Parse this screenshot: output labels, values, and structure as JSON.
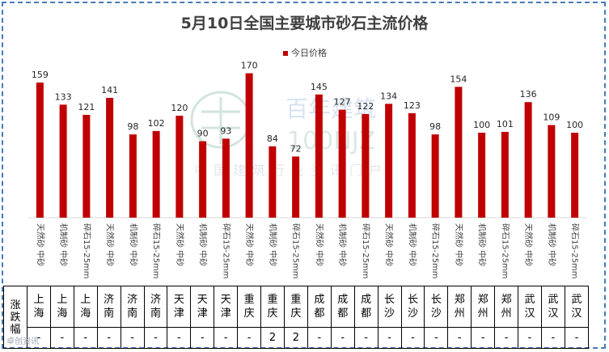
{
  "chart_data": {
    "type": "bar",
    "title": "5月10日全国主要城市砂石主流价格",
    "legend": [
      "今日价格"
    ],
    "legend_position": "top-center",
    "series": [
      {
        "name": "今日价格",
        "values": [
          159,
          133,
          121,
          141,
          98,
          102,
          120,
          90,
          93,
          170,
          84,
          72,
          145,
          127,
          122,
          134,
          123,
          98,
          154,
          100,
          101,
          136,
          109,
          100
        ]
      }
    ],
    "categories": [
      "天然砂 中砂",
      "机制砂 中砂",
      "碎石15-25mm",
      "天然砂 中砂",
      "机制砂 中砂",
      "碎石15-25mm",
      "天然砂 中砂",
      "机制砂 中砂",
      "碎石15-25mm",
      "天然砂 中砂",
      "机制砂 中砂",
      "碎石15-25mm",
      "天然砂 中砂",
      "机制砂 中砂",
      "碎石15-25mm",
      "天然砂 中砂",
      "机制砂 中砂",
      "碎石15-25mm",
      "天然砂 中砂",
      "机制砂 中砂",
      "碎石15-25mm",
      "天然砂 中砂",
      "机制砂 中砂",
      "碎石15-25mm"
    ],
    "ylim": [
      0,
      180
    ],
    "grid": false,
    "colors": {
      "bar": "#c00000"
    }
  },
  "table": {
    "row_label": "涨跌幅",
    "cities": [
      "上海",
      "上海",
      "上海",
      "济南",
      "济南",
      "济南",
      "天津",
      "天津",
      "天津",
      "重庆",
      "重庆",
      "重庆",
      "成都",
      "成都",
      "成都",
      "长沙",
      "长沙",
      "长沙",
      "郑州",
      "郑州",
      "郑州",
      "武汉",
      "武汉",
      "武汉"
    ],
    "changes": [
      "-",
      "-",
      "-",
      "-",
      "-",
      "-",
      "-",
      "-",
      "-",
      "-",
      "2",
      "2",
      "-",
      "-",
      "-",
      "-",
      "-",
      "-",
      "-",
      "-",
      "-",
      "-",
      "-",
      "-"
    ]
  },
  "watermark": {
    "brand": "百年建筑",
    "code": "100NJZ",
    "tagline": "中国建筑行业资讯门户"
  },
  "corner_logo": "卓创资讯"
}
